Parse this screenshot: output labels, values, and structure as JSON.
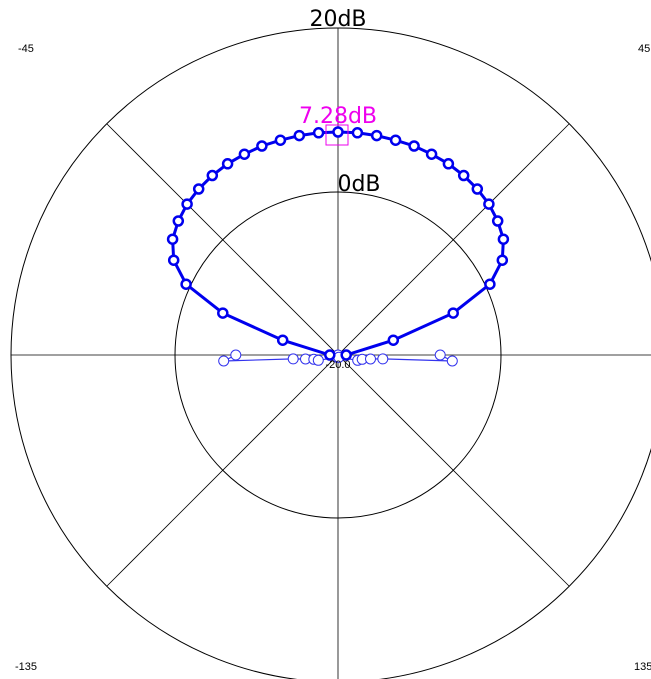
{
  "chart_data": {
    "type": "polar-line",
    "title": "",
    "rings": [
      {
        "value": 20,
        "label": "20dB"
      },
      {
        "value": 0,
        "label": "0dB"
      }
    ],
    "radial_range": [
      -20,
      20
    ],
    "center_label": "-20.0",
    "angle_labels": [
      {
        "angle": -45,
        "label": "-45"
      },
      {
        "angle": 45,
        "label": "45"
      },
      {
        "angle": -135,
        "label": "-135"
      },
      {
        "angle": 135,
        "label": "135"
      }
    ],
    "colors": {
      "main": "#0000ee",
      "side": "#3333ee",
      "peak": "#ee00ee",
      "grid": "#000000"
    },
    "peak": {
      "angle": 0,
      "value": 7.28,
      "label": "7.28dB"
    },
    "series": [
      {
        "style": "main",
        "points": [
          [
            -90,
            -19
          ],
          [
            -75,
            -13
          ],
          [
            -70,
            -5
          ],
          [
            -65,
            0.5
          ],
          [
            -60,
            3.2
          ],
          [
            -55,
            4.7
          ],
          [
            -50,
            5.5
          ],
          [
            -45,
            6.1
          ],
          [
            -40,
            6.5
          ],
          [
            -35,
            6.8
          ],
          [
            -30,
            7.0
          ],
          [
            -25,
            7.1
          ],
          [
            -20,
            7.2
          ],
          [
            -15,
            7.2
          ],
          [
            -10,
            7.25
          ],
          [
            -5,
            7.28
          ],
          [
            0,
            7.28
          ],
          [
            5,
            7.28
          ],
          [
            10,
            7.25
          ],
          [
            15,
            7.2
          ],
          [
            20,
            7.2
          ],
          [
            25,
            7.1
          ],
          [
            30,
            7.0
          ],
          [
            35,
            6.8
          ],
          [
            40,
            6.5
          ],
          [
            45,
            6.1
          ],
          [
            50,
            5.5
          ],
          [
            55,
            4.7
          ],
          [
            60,
            3.2
          ],
          [
            65,
            0.5
          ],
          [
            70,
            -5
          ],
          [
            75,
            -13
          ],
          [
            90,
            -19
          ]
        ]
      },
      {
        "style": "side",
        "points": [
          [
            -90,
            -7.5
          ],
          [
            -93,
            -6
          ],
          [
            -95,
            -14.5
          ],
          [
            -97,
            -16
          ],
          [
            -100,
            -17
          ],
          [
            -105,
            -17.5
          ],
          [
            -160,
            -19.7
          ],
          [
            180,
            -20
          ],
          [
            160,
            -19.7
          ],
          [
            105,
            -17.5
          ],
          [
            100,
            -17
          ],
          [
            97,
            -16
          ],
          [
            95,
            -14.5
          ],
          [
            93,
            -6
          ],
          [
            90,
            -7.5
          ]
        ]
      }
    ]
  }
}
